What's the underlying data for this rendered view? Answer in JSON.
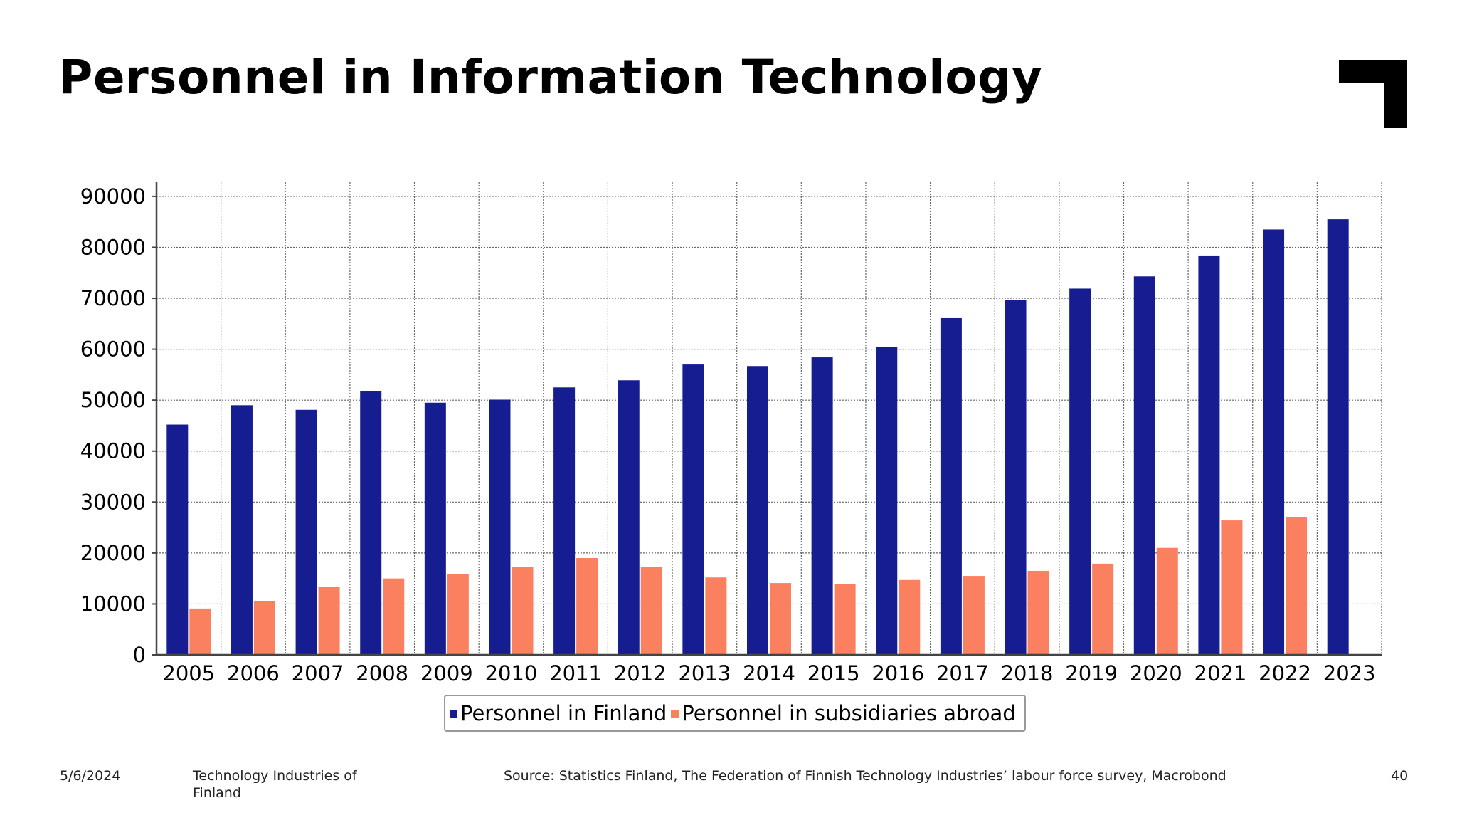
{
  "slide": {
    "title": "Personnel in Information Technology",
    "footer": {
      "date": "5/6/2024",
      "organization": "Technology Industries of Finland",
      "source": "Source: Statistics Finland, The Federation of Finnish Technology Industries’ labour force survey, Macrobond",
      "page_number": "40"
    },
    "colors": {
      "finland": "#161d91",
      "abroad": "#fa8060",
      "grid": "#666666",
      "logo": "#000000"
    },
    "logo_icon": "corner-bracket-logo-icon"
  },
  "chart_data": {
    "type": "bar",
    "title": "",
    "xlabel": "",
    "ylabel": "",
    "categories": [
      "2005",
      "2006",
      "2007",
      "2008",
      "2009",
      "2010",
      "2011",
      "2012",
      "2013",
      "2014",
      "2015",
      "2016",
      "2017",
      "2018",
      "2019",
      "2020",
      "2021",
      "2022",
      "2023"
    ],
    "series": [
      {
        "name": "Personnel in Finland",
        "color": "#161d91",
        "values": [
          45200,
          49000,
          48100,
          51700,
          49500,
          50100,
          52500,
          53900,
          57000,
          56700,
          58400,
          60500,
          66100,
          69700,
          71900,
          74300,
          78400,
          83500,
          85500
        ]
      },
      {
        "name": "Personnel in subsidiaries abroad",
        "color": "#fa8060",
        "values": [
          9100,
          10500,
          13300,
          15000,
          15900,
          17200,
          19000,
          17200,
          15200,
          14100,
          13900,
          14700,
          15500,
          16500,
          17900,
          21000,
          26400,
          27100,
          null
        ]
      }
    ],
    "ylim": [
      0,
      90000
    ],
    "yticks": [
      0,
      10000,
      20000,
      30000,
      40000,
      50000,
      60000,
      70000,
      80000,
      90000
    ],
    "grid": true,
    "legend_position": "bottom-center"
  }
}
